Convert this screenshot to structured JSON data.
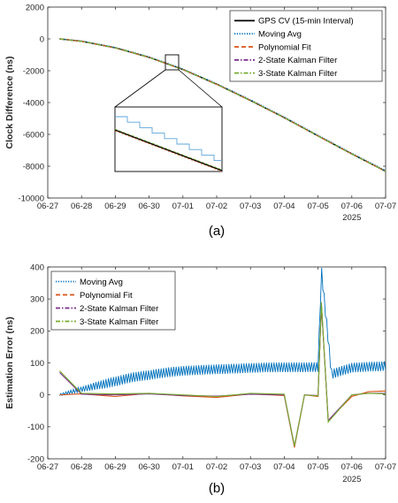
{
  "chart_data": [
    {
      "type": "line",
      "caption": "(a)",
      "ylabel": "Clock Difference (ns)",
      "xlabel": "",
      "ylim": [
        -10000,
        2000
      ],
      "yticks": [
        2000,
        0,
        -2000,
        -4000,
        -6000,
        -8000,
        -10000
      ],
      "xticks": [
        "06-27",
        "06-28",
        "06-29",
        "06-30",
        "07-01",
        "07-02",
        "07-03",
        "07-04",
        "07-05",
        "07-06",
        "07-07"
      ],
      "year_label": "2025",
      "x_unit": "days from 06-27",
      "x": [
        0.35,
        1,
        2,
        3,
        4,
        5,
        6,
        7,
        8,
        9,
        10
      ],
      "series": [
        {
          "name": "GPS CV (15-min Interval)",
          "color": "#000000",
          "style": "solid",
          "values": [
            0,
            -150,
            -560,
            -1160,
            -1920,
            -2850,
            -3870,
            -4950,
            -6100,
            -7230,
            -8320
          ]
        },
        {
          "name": "Moving Avg",
          "color": "#0072BD",
          "style": "dotted",
          "values": [
            0,
            -130,
            -540,
            -1130,
            -1890,
            -2810,
            -3830,
            -4910,
            -6060,
            -7190,
            -8280
          ]
        },
        {
          "name": "Polynomial Fit",
          "color": "#D95319",
          "style": "dashed",
          "values": [
            0,
            -150,
            -560,
            -1160,
            -1920,
            -2850,
            -3870,
            -4950,
            -6100,
            -7230,
            -8320
          ]
        },
        {
          "name": "2-State Kalman Filter",
          "color": "#7E2F8E",
          "style": "dashdot",
          "values": [
            0,
            -150,
            -560,
            -1160,
            -1920,
            -2850,
            -3870,
            -4950,
            -6100,
            -7230,
            -8320
          ]
        },
        {
          "name": "3-State Kalman Filter",
          "color": "#77AC30",
          "style": "dashdot",
          "values": [
            0,
            -150,
            -560,
            -1160,
            -1920,
            -2850,
            -3870,
            -4950,
            -6100,
            -7230,
            -8320
          ]
        }
      ],
      "annotations": [
        "zoom inset around 06-30/07-01"
      ],
      "legend_position": "top-right",
      "grid": false
    },
    {
      "type": "line",
      "caption": "(b)",
      "ylabel": "Estimation Error (ns)",
      "xlabel": "",
      "ylim": [
        -200,
        400
      ],
      "yticks": [
        400,
        300,
        200,
        100,
        0,
        -100,
        -200
      ],
      "xticks": [
        "06-27",
        "06-28",
        "06-29",
        "06-30",
        "07-01",
        "07-02",
        "07-03",
        "07-04",
        "07-05",
        "07-06",
        "07-07"
      ],
      "year_label": "2025",
      "x_unit": "days from 06-27",
      "series": [
        {
          "name": "Moving Avg",
          "color": "#0072BD",
          "style": "dotted",
          "x": [
            0.35,
            0.9,
            1.5,
            2,
            2.5,
            3,
            3.5,
            4,
            4.5,
            5,
            5.5,
            6,
            6.5,
            7,
            7.5,
            8,
            8.1,
            8.4,
            9,
            9.5,
            10
          ],
          "values": [
            0,
            15,
            30,
            42,
            55,
            62,
            70,
            75,
            78,
            80,
            82,
            84,
            86,
            86,
            86,
            87,
            390,
            65,
            85,
            88,
            90
          ],
          "band": 15
        },
        {
          "name": "Polynomial Fit",
          "color": "#D95319",
          "style": "dashed",
          "x": [
            0.35,
            1,
            2,
            3,
            4,
            5,
            6,
            7,
            7.3,
            7.6,
            8,
            8.1,
            8.3,
            9,
            9.5,
            10
          ],
          "values": [
            0,
            3,
            -5,
            5,
            -3,
            -8,
            3,
            -2,
            -165,
            0,
            -5,
            285,
            -80,
            -5,
            10,
            12
          ]
        },
        {
          "name": "2-State Kalman Filter",
          "color": "#7E2F8E",
          "style": "dashdot",
          "x": [
            0.35,
            1,
            2,
            3,
            4,
            5,
            6,
            7,
            7.3,
            7.6,
            8,
            8.1,
            8.3,
            9,
            9.5,
            10
          ],
          "values": [
            70,
            2,
            0,
            3,
            -2,
            -4,
            2,
            0,
            -160,
            0,
            -2,
            280,
            -80,
            0,
            5,
            5
          ]
        },
        {
          "name": "3-State Kalman Filter",
          "color": "#77AC30",
          "style": "dashdot",
          "x": [
            0.35,
            1,
            2,
            3,
            4,
            5,
            6,
            7,
            7.3,
            7.6,
            8,
            8.1,
            8.3,
            9,
            9.5,
            10
          ],
          "values": [
            75,
            5,
            3,
            5,
            0,
            -5,
            5,
            2,
            -160,
            0,
            -3,
            290,
            -85,
            0,
            5,
            3
          ]
        }
      ],
      "legend_position": "top-left",
      "grid": false
    }
  ]
}
